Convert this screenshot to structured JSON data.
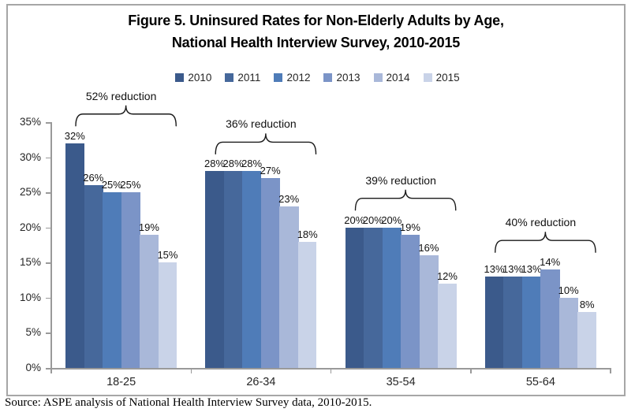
{
  "figure": {
    "title_line1": "Figure 5. Uninsured Rates for Non-Elderly Adults by Age,",
    "title_line2": "National Health Interview Survey, 2010-2015",
    "source": "Source: ASPE analysis of National Health Interview Survey data, 2010-2015."
  },
  "chart_data": {
    "type": "bar",
    "title": "Figure 5. Uninsured Rates for Non-Elderly Adults by Age, National Health Interview Survey, 2010-2015",
    "categories": [
      "18-25",
      "26-34",
      "35-54",
      "55-64"
    ],
    "series": [
      {
        "name": "2010",
        "color": "#3B5A8B",
        "values": [
          32,
          28,
          20,
          13
        ]
      },
      {
        "name": "2011",
        "color": "#46689B",
        "values": [
          26,
          28,
          20,
          13
        ]
      },
      {
        "name": "2012",
        "color": "#4F7CB8",
        "values": [
          25,
          28,
          20,
          13
        ]
      },
      {
        "name": "2013",
        "color": "#7B94C7",
        "values": [
          25,
          27,
          19,
          14
        ]
      },
      {
        "name": "2014",
        "color": "#A9B8D9",
        "values": [
          19,
          23,
          16,
          10
        ]
      },
      {
        "name": "2015",
        "color": "#C9D3E8",
        "values": [
          15,
          18,
          12,
          8
        ]
      }
    ],
    "value_suffix": "%",
    "ylim": [
      0,
      35
    ],
    "yticks": [
      "0%",
      "5%",
      "10%",
      "15%",
      "20%",
      "25%",
      "30%",
      "35%"
    ],
    "grid": false,
    "legend_position": "top",
    "axis_color": "#9a9a9a",
    "annotations": [
      {
        "category": "18-25",
        "label": "52% reduction"
      },
      {
        "category": "26-34",
        "label": "36% reduction"
      },
      {
        "category": "35-54",
        "label": "39% reduction"
      },
      {
        "category": "55-64",
        "label": "40% reduction"
      }
    ]
  }
}
